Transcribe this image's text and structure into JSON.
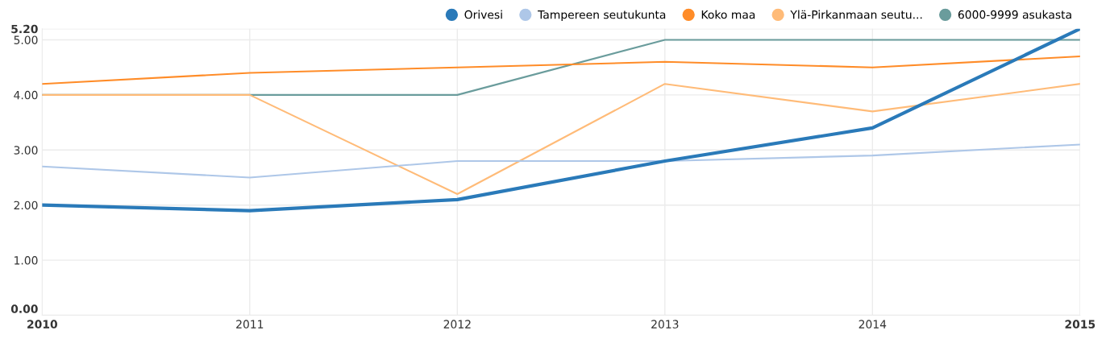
{
  "chart_data": {
    "type": "line",
    "x": [
      2010,
      2011,
      2012,
      2013,
      2014,
      2015
    ],
    "series": [
      {
        "name": "Orivesi",
        "color": "#2a7ab9",
        "values": [
          2.0,
          1.9,
          2.1,
          2.8,
          3.4,
          5.2
        ]
      },
      {
        "name": "Tampereen seutukunta",
        "color": "#aec7e8",
        "values": [
          2.7,
          2.5,
          2.8,
          2.8,
          2.9,
          3.1
        ]
      },
      {
        "name": "Koko maa",
        "color": "#ff8c28",
        "values": [
          4.2,
          4.4,
          4.5,
          4.6,
          4.5,
          4.7
        ]
      },
      {
        "name": "Ylä-Pirkanmaan seutu...",
        "color": "#ffbb78",
        "values": [
          4.0,
          4.0,
          2.2,
          4.2,
          3.7,
          4.2
        ]
      },
      {
        "name": "6000-9999 asukasta",
        "color": "#6a9c9c",
        "values": [
          4.0,
          4.0,
          4.0,
          5.0,
          5.0,
          5.0
        ]
      }
    ],
    "xlim": [
      2010,
      2015
    ],
    "xticks": [
      2010,
      2011,
      2012,
      2013,
      2014,
      2015
    ],
    "ylim": [
      0,
      5.2
    ],
    "yticks": [
      {
        "value": 0,
        "label": "0.00"
      },
      {
        "value": 1,
        "label": "1.00"
      },
      {
        "value": 2,
        "label": "2.00"
      },
      {
        "value": 3,
        "label": "3.00"
      },
      {
        "value": 4,
        "label": "4.00"
      },
      {
        "value": 5,
        "label": "5.00"
      },
      {
        "value": 5.2,
        "label": "5.20"
      }
    ],
    "grid": true,
    "legend": "top right",
    "marker": "none",
    "line_style": "solid"
  }
}
